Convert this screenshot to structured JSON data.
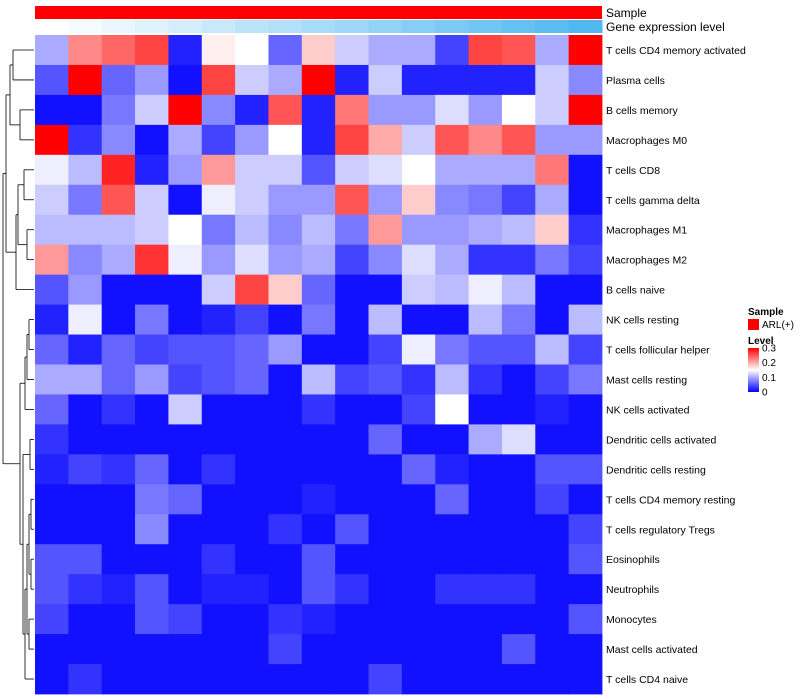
{
  "chart_data": {
    "type": "heatmap",
    "annotations": [
      {
        "name": "Sample",
        "kind": "categorical"
      },
      {
        "name": "Gene expression level",
        "kind": "gradient"
      }
    ],
    "rows": [
      "T cells CD4 memory activated",
      "Plasma cells",
      "B cells memory",
      "Macrophages M0",
      "T cells CD8",
      "T cells gamma delta",
      "Macrophages M1",
      "Macrophages M2",
      "B cells naive",
      "NK cells resting",
      "T cells follicular helper",
      "Mast cells resting",
      "NK cells activated",
      "Dendritic cells activated",
      "Dendritic cells resting",
      "T cells CD4 memory resting",
      "T cells regulatory  Tregs",
      "Eosinophils",
      "Neutrophils",
      "Monocytes",
      "Mast cells activated",
      "T cells CD4 naive"
    ],
    "values": [
      [
        0.1,
        0.22,
        0.24,
        0.26,
        0.02,
        0.16,
        0.15,
        0.06,
        0.18,
        0.12,
        0.1,
        0.1,
        0.04,
        0.26,
        0.25,
        0.1,
        0.3
      ],
      [
        0.05,
        0.3,
        0.06,
        0.09,
        0.01,
        0.26,
        0.12,
        0.1,
        0.3,
        0.02,
        0.12,
        0.02,
        0.02,
        0.02,
        0.02,
        0.12,
        0.08
      ],
      [
        0.01,
        0.01,
        0.07,
        0.12,
        0.3,
        0.08,
        0.02,
        0.25,
        0.02,
        0.23,
        0.09,
        0.09,
        0.13,
        0.09,
        0.15,
        0.12,
        0.3
      ],
      [
        0.3,
        0.03,
        0.08,
        0.01,
        0.1,
        0.04,
        0.09,
        0.15,
        0.02,
        0.26,
        0.2,
        0.12,
        0.25,
        0.22,
        0.25,
        0.09,
        0.09
      ],
      [
        0.14,
        0.11,
        0.28,
        0.02,
        0.09,
        0.21,
        0.12,
        0.12,
        0.05,
        0.12,
        0.13,
        0.15,
        0.1,
        0.1,
        0.1,
        0.23,
        0.01
      ],
      [
        0.12,
        0.07,
        0.25,
        0.12,
        0.01,
        0.14,
        0.12,
        0.09,
        0.09,
        0.25,
        0.09,
        0.18,
        0.08,
        0.07,
        0.04,
        0.1,
        0.01
      ],
      [
        0.11,
        0.11,
        0.11,
        0.12,
        0.15,
        0.07,
        0.11,
        0.08,
        0.11,
        0.07,
        0.21,
        0.09,
        0.09,
        0.1,
        0.11,
        0.18,
        0.03
      ],
      [
        0.21,
        0.08,
        0.1,
        0.27,
        0.14,
        0.09,
        0.13,
        0.09,
        0.1,
        0.04,
        0.08,
        0.13,
        0.1,
        0.03,
        0.03,
        0.07,
        0.04
      ],
      [
        0.05,
        0.09,
        0.01,
        0.01,
        0.01,
        0.12,
        0.26,
        0.18,
        0.06,
        0.01,
        0.01,
        0.12,
        0.11,
        0.14,
        0.11,
        0.01,
        0.01
      ],
      [
        0.02,
        0.14,
        0.01,
        0.07,
        0.01,
        0.02,
        0.04,
        0.01,
        0.07,
        0.01,
        0.11,
        0.01,
        0.01,
        0.11,
        0.07,
        0.01,
        0.11
      ],
      [
        0.06,
        0.02,
        0.06,
        0.04,
        0.05,
        0.05,
        0.06,
        0.09,
        0.01,
        0.01,
        0.04,
        0.14,
        0.07,
        0.05,
        0.05,
        0.11,
        0.04
      ],
      [
        0.1,
        0.1,
        0.06,
        0.09,
        0.04,
        0.05,
        0.06,
        0.01,
        0.11,
        0.04,
        0.05,
        0.03,
        0.11,
        0.03,
        0.01,
        0.04,
        0.07
      ],
      [
        0.06,
        0.01,
        0.03,
        0.01,
        0.12,
        0.01,
        0.01,
        0.01,
        0.03,
        0.01,
        0.01,
        0.04,
        0.15,
        0.01,
        0.01,
        0.02,
        0.01
      ],
      [
        0.03,
        0.01,
        0.01,
        0.01,
        0.01,
        0.01,
        0.01,
        0.01,
        0.01,
        0.01,
        0.06,
        0.01,
        0.01,
        0.1,
        0.13,
        0.01,
        0.01
      ],
      [
        0.02,
        0.04,
        0.03,
        0.06,
        0.01,
        0.03,
        0.01,
        0.01,
        0.01,
        0.01,
        0.01,
        0.06,
        0.02,
        0.01,
        0.01,
        0.05,
        0.05
      ],
      [
        0.01,
        0.01,
        0.01,
        0.07,
        0.06,
        0.01,
        0.01,
        0.01,
        0.02,
        0.01,
        0.01,
        0.01,
        0.06,
        0.01,
        0.01,
        0.04,
        0.01
      ],
      [
        0.01,
        0.01,
        0.01,
        0.08,
        0.01,
        0.01,
        0.01,
        0.03,
        0.01,
        0.05,
        0.01,
        0.01,
        0.01,
        0.01,
        0.01,
        0.01,
        0.04
      ],
      [
        0.05,
        0.05,
        0.01,
        0.01,
        0.01,
        0.03,
        0.01,
        0.01,
        0.05,
        0.01,
        0.01,
        0.01,
        0.01,
        0.01,
        0.01,
        0.01,
        0.05
      ],
      [
        0.05,
        0.03,
        0.02,
        0.05,
        0.01,
        0.02,
        0.02,
        0.01,
        0.05,
        0.03,
        0.01,
        0.01,
        0.03,
        0.03,
        0.03,
        0.01,
        0.01
      ],
      [
        0.04,
        0.01,
        0.01,
        0.05,
        0.04,
        0.01,
        0.01,
        0.03,
        0.02,
        0.01,
        0.01,
        0.01,
        0.01,
        0.01,
        0.01,
        0.01,
        0.05
      ],
      [
        0.01,
        0.01,
        0.01,
        0.01,
        0.01,
        0.01,
        0.01,
        0.04,
        0.01,
        0.01,
        0.01,
        0.01,
        0.01,
        0.01,
        0.05,
        0.01,
        0.01
      ],
      [
        0.01,
        0.03,
        0.01,
        0.01,
        0.01,
        0.01,
        0.01,
        0.01,
        0.01,
        0.01,
        0.04,
        0.01,
        0.01,
        0.01,
        0.01,
        0.01,
        0.01
      ]
    ],
    "gene_expression_level": [
      0.0,
      0.06,
      0.12,
      0.19,
      0.25,
      0.31,
      0.38,
      0.44,
      0.5,
      0.56,
      0.62,
      0.69,
      0.75,
      0.81,
      0.88,
      0.94,
      1.0
    ],
    "color_scale": {
      "low": "#0000FF",
      "mid": "#FFFFFF",
      "high": "#FF0000",
      "min": 0,
      "max": 0.3
    },
    "annotation_colors": {
      "sample": "#FF0000",
      "gene_expression_low": "#FFFFFF",
      "gene_expression_high": "#4FB8F0"
    },
    "legend": {
      "sample_title": "Sample",
      "sample_entries": [
        "ARL(+)"
      ],
      "level_title": "Level",
      "level_ticks": [
        "0.3",
        "0.2",
        "0.1",
        "0"
      ],
      "level_tick_values": [
        0.3,
        0.2,
        0.1,
        0
      ],
      "placement": "right"
    },
    "dendrogram": "rows clustered (left side)"
  }
}
